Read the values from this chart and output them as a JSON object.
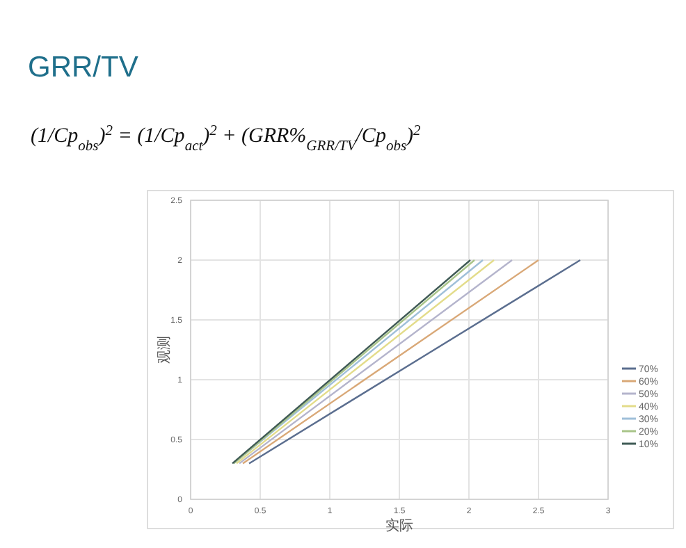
{
  "chart_data": {
    "type": "line",
    "title": "GRR/TV",
    "subtitle": "(1/Cp$_{obs}$)$^{2}$ = (1/Cp$_{act}$)$^{2}$ + (GRR%$_{GRR/TV}$/Cp$_{obs}$)$^{2}$",
    "xlabel": "实际",
    "ylabel": "观测",
    "xlim": [
      0,
      3
    ],
    "ylim": [
      0,
      2.5
    ],
    "xticks": [
      0,
      0.5,
      1,
      1.5,
      2,
      2.5,
      3
    ],
    "yticks": [
      0,
      0.5,
      1,
      1.5,
      2,
      2.5
    ],
    "grid": true,
    "legend": "right",
    "marker": "none",
    "line_style": "solid",
    "series": [
      {
        "name": "70%",
        "color": "#5b6e8f",
        "x": [
          0.42,
          2.8
        ],
        "values": [
          0.3,
          2
        ]
      },
      {
        "name": "60%",
        "color": "#d9a877",
        "x": [
          0.375,
          2.5
        ],
        "values": [
          0.3,
          2
        ]
      },
      {
        "name": "50%",
        "color": "#b4b4cc",
        "x": [
          0.35,
          2.31
        ],
        "values": [
          0.3,
          2
        ]
      },
      {
        "name": "40%",
        "color": "#e3dc8a",
        "x": [
          0.33,
          2.18
        ],
        "values": [
          0.3,
          2
        ]
      },
      {
        "name": "30%",
        "color": "#9fbfd9",
        "x": [
          0.31,
          2.1
        ],
        "values": [
          0.3,
          2
        ]
      },
      {
        "name": "20%",
        "color": "#a8c489",
        "x": [
          0.31,
          2.04
        ],
        "values": [
          0.3,
          2
        ]
      },
      {
        "name": "10%",
        "color": "#3f5a55",
        "x": [
          0.3,
          2.01
        ],
        "values": [
          0.3,
          2
        ]
      }
    ]
  }
}
